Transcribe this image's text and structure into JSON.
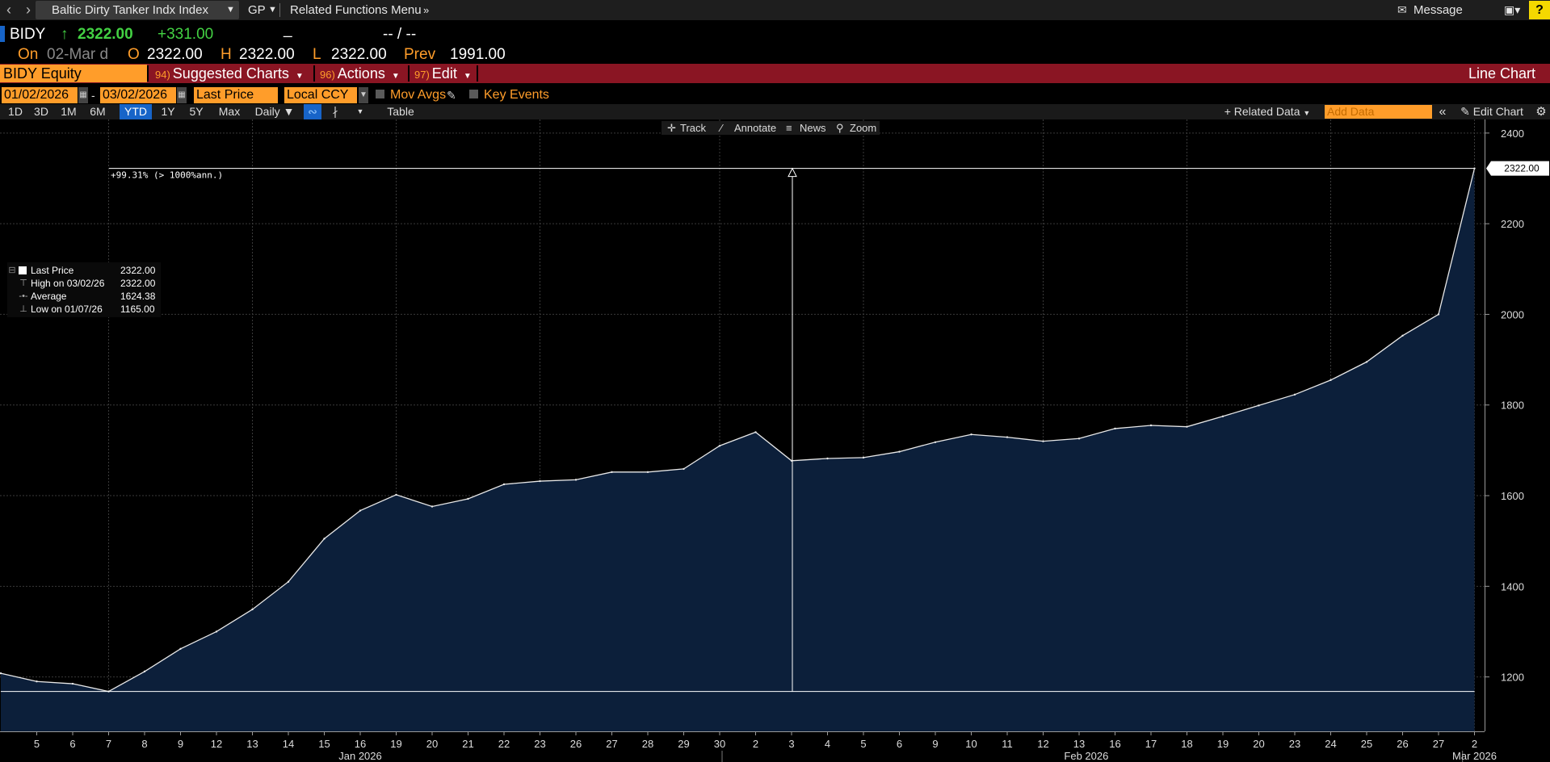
{
  "topbar": {
    "security": "Baltic Dirty Tanker Indx Index",
    "gp": "GP",
    "related": "Related Functions Menu",
    "message": "Message",
    "help": "?"
  },
  "quote": {
    "ticker": "BIDY",
    "last": "2322.00",
    "change": "+331.00",
    "bidask": "-- / --",
    "on_label": "On",
    "date": "02-Mar d",
    "open_label": "O",
    "open": "2322.00",
    "high_label": "H",
    "high": "2322.00",
    "low_label": "L",
    "low": "2322.00",
    "prev_label": "Prev",
    "prev": "1991.00"
  },
  "menubar": {
    "equity": "BIDY Equity",
    "suggested_num": "94)",
    "suggested": "Suggested Charts",
    "actions_num": "96)",
    "actions": "Actions",
    "edit_num": "97)",
    "edit": "Edit",
    "chart_type": "Line Chart"
  },
  "settings": {
    "start_date": "01/02/2026",
    "end_date": "03/02/2026",
    "field": "Last Price",
    "currency": "Local CCY",
    "mov_avgs": "Mov Avgs",
    "key_events": "Key Events"
  },
  "ranges": [
    "1D",
    "3D",
    "1M",
    "6M",
    "YTD",
    "1Y",
    "5Y",
    "Max"
  ],
  "selected_range": "YTD",
  "toolbar": {
    "period": "Daily",
    "table": "Table",
    "related_data": "Related Data",
    "add_data_placeholder": "Add Data",
    "edit_chart": "Edit Chart",
    "track": "Track",
    "annotate": "Annotate",
    "news": "News",
    "zoom": "Zoom"
  },
  "legend": {
    "rows": [
      {
        "label": "Last Price",
        "value": "2322.00"
      },
      {
        "label": "High on 03/02/26",
        "value": "2322.00"
      },
      {
        "label": "Average",
        "value": "1624.38"
      },
      {
        "label": "Low on 01/07/26",
        "value": "1165.00"
      }
    ]
  },
  "measure_label": "+99.31% (> 1000%ann.)",
  "colors": {
    "accent_orange": "#ff9d2a",
    "up_green": "#43d143",
    "menu_red": "#8a1523",
    "area_fill": "#0c1f3a",
    "selected_blue": "#1764c8"
  },
  "chart_data": {
    "type": "area",
    "series": [
      {
        "name": "Last Price",
        "values": [
          1208,
          1190,
          1185,
          1168,
          1212,
          1262,
          1300,
          1349,
          1410,
          1505,
          1567,
          1602,
          1576,
          1593,
          1625,
          1632,
          1635,
          1652,
          1652,
          1659,
          1710,
          1740,
          1677,
          1682,
          1684,
          1697,
          1718,
          1735,
          1729,
          1720,
          1726,
          1748,
          1755,
          1752,
          1775,
          1799,
          1823,
          1855,
          1895,
          1953,
          2000,
          2322
        ]
      }
    ],
    "x": [
      "",
      "5",
      "6",
      "7",
      "8",
      "9",
      "12",
      "13",
      "14",
      "15",
      "16",
      "19",
      "20",
      "21",
      "22",
      "23",
      "26",
      "27",
      "28",
      "29",
      "30",
      "2",
      "3",
      "4",
      "5",
      "6",
      "9",
      "10",
      "11",
      "12",
      "13",
      "16",
      "17",
      "18",
      "19",
      "20",
      "23",
      "24",
      "25",
      "26",
      "27",
      "2"
    ],
    "x_period_labels": [
      "Jan 2026",
      "Feb 2026",
      "Mar 2026"
    ],
    "y_ticks": [
      1200,
      1400,
      1600,
      1800,
      2000,
      2200,
      2400
    ],
    "ylim": [
      1080,
      2430
    ],
    "last_value_label": "2322.00",
    "grid": true,
    "legend_position": "left"
  }
}
